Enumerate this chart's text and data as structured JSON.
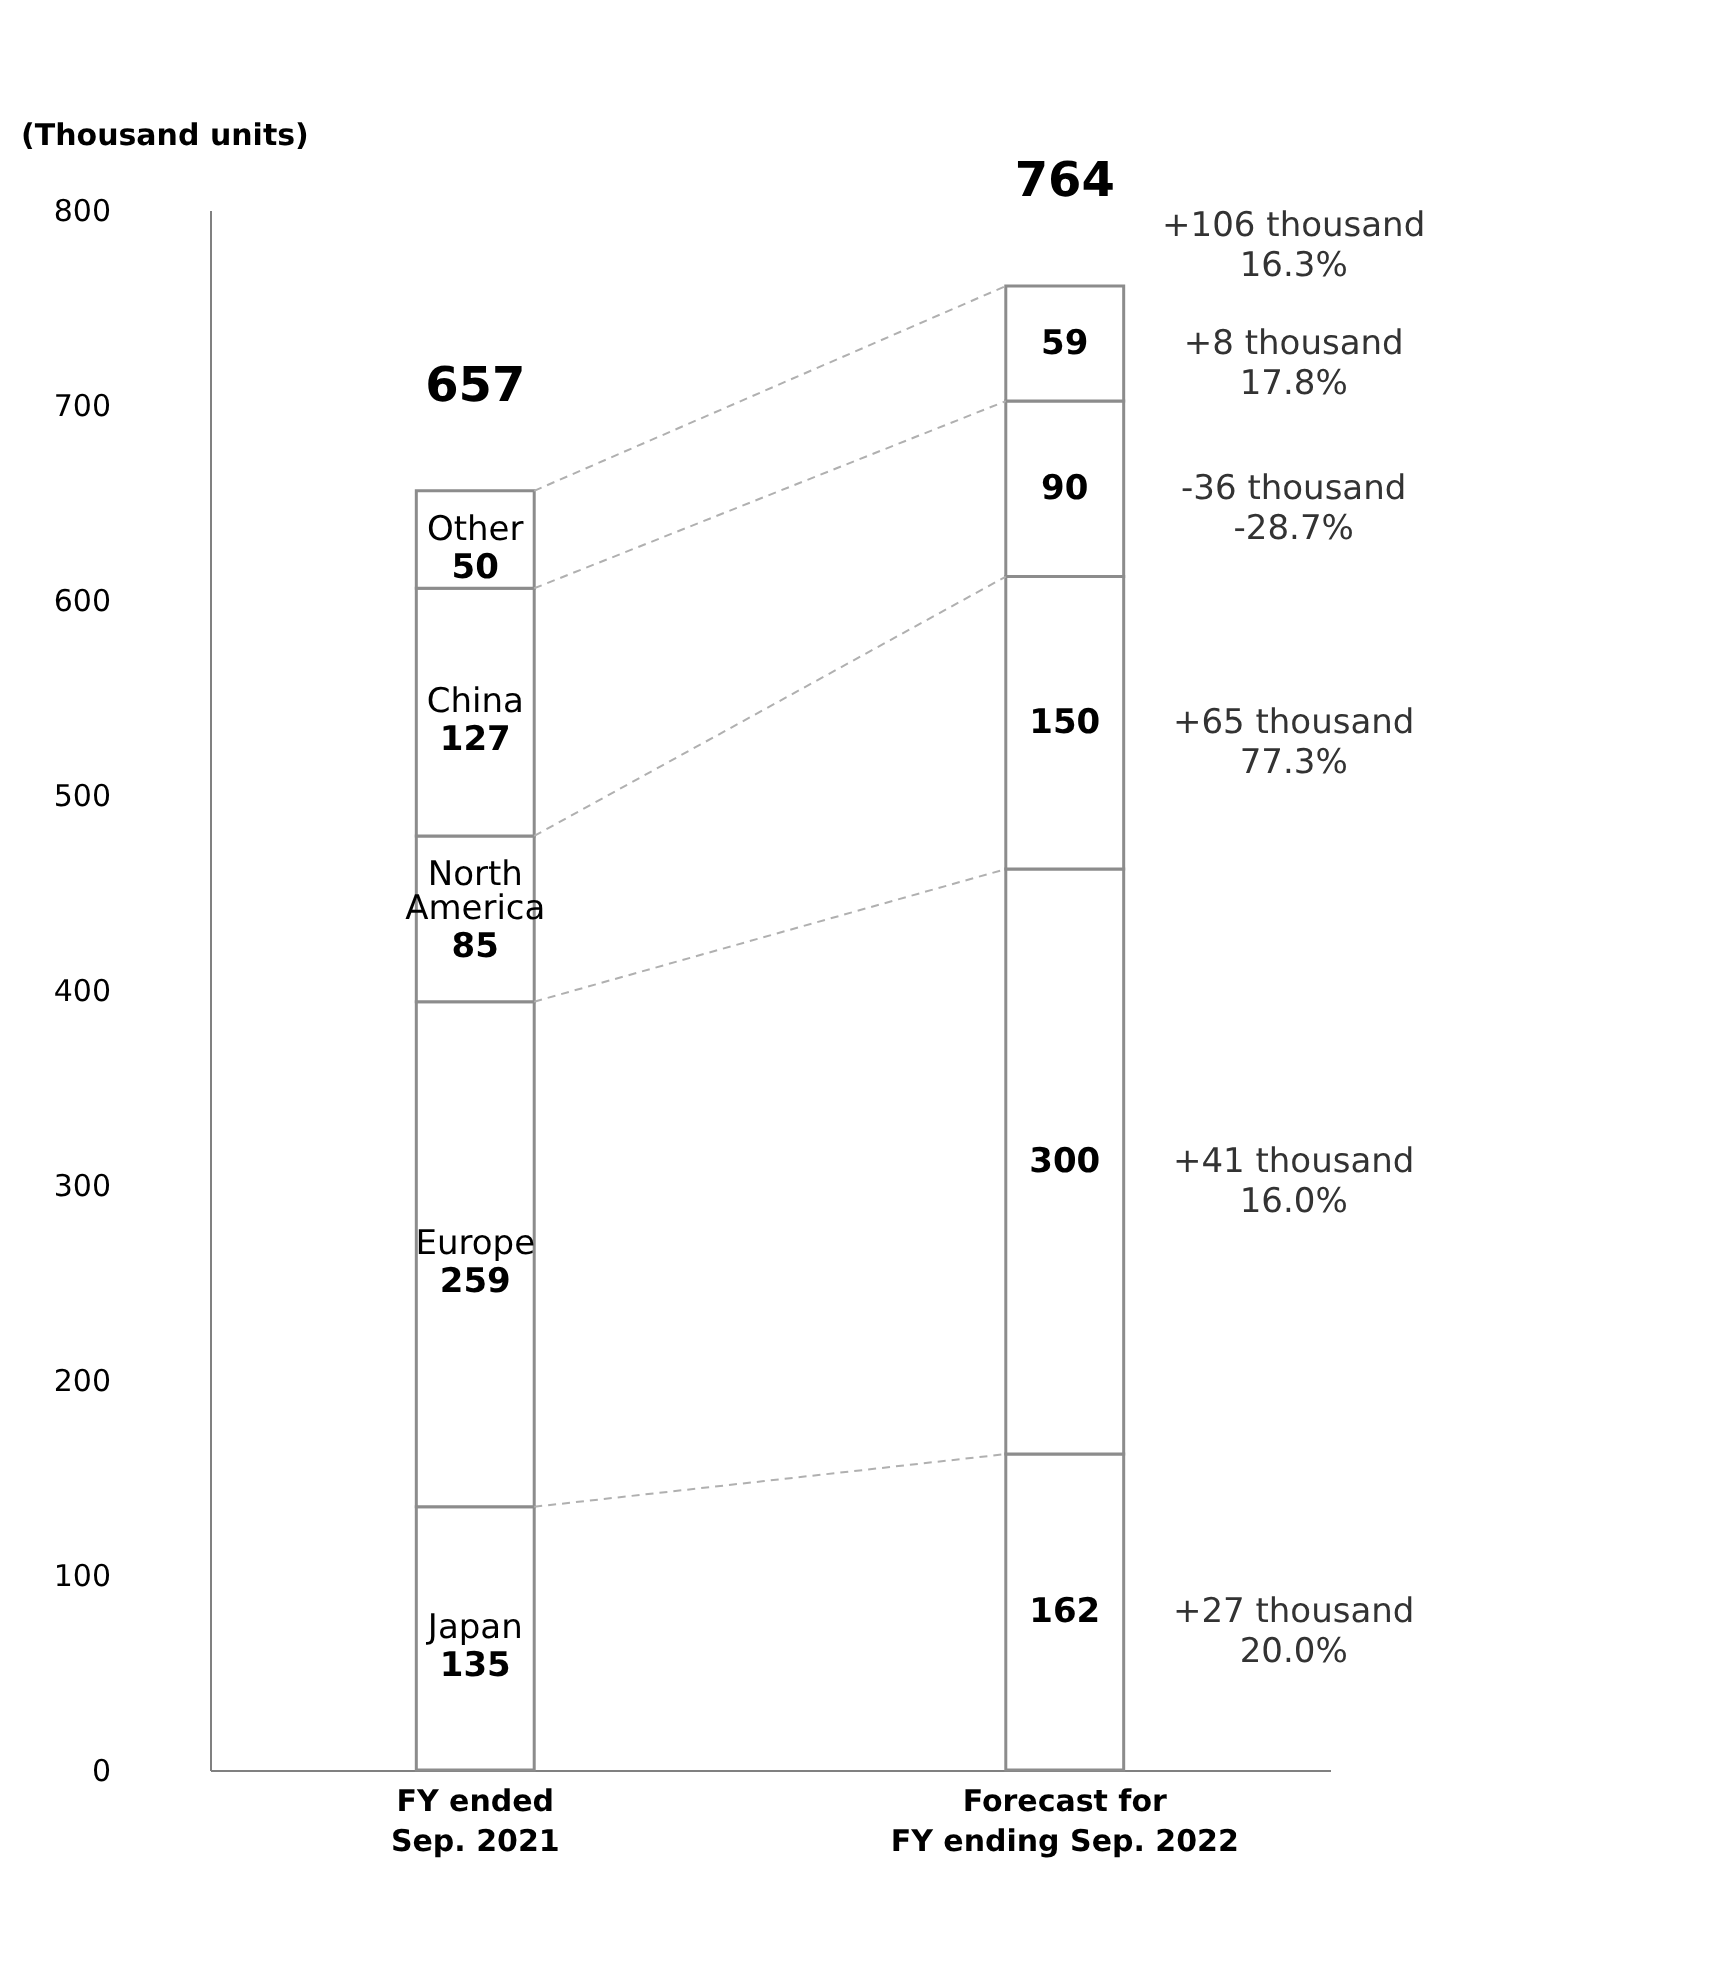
{
  "chart_data": {
    "type": "bar",
    "stacked": true,
    "ylabel": "(Thousand units)",
    "categories": [
      "FY ended\nSep. 2021",
      "Forecast for\nFY ending Sep. 2022"
    ],
    "series": [
      {
        "name": "Japan",
        "color": "#ffffff",
        "values": [
          135,
          162
        ]
      },
      {
        "name": "Europe",
        "color": "#ffffff",
        "values": [
          259,
          300
        ]
      },
      {
        "name": "North\nAmerica",
        "color": "#ffffff",
        "values": [
          85,
          150
        ]
      },
      {
        "name": "China",
        "color": "#ffffff",
        "values": [
          127,
          90
        ]
      },
      {
        "name": "Other",
        "color": "#ffffff",
        "values": [
          50,
          59
        ]
      }
    ],
    "totals": [
      "657",
      "764"
    ],
    "ylim": [
      0,
      800
    ],
    "yticks": [
      0,
      100,
      200,
      300,
      400,
      500,
      600,
      700,
      800
    ],
    "data_labels": true,
    "grid": false,
    "annotations": [
      "+106 thousand\n16.3%",
      "+8 thousand\n17.8%",
      "-36 thousand\n-28.7%",
      "+65 thousand\n77.3%",
      "+41 thousand\n16.0%",
      "+27 thousand\n20.0%"
    ]
  }
}
